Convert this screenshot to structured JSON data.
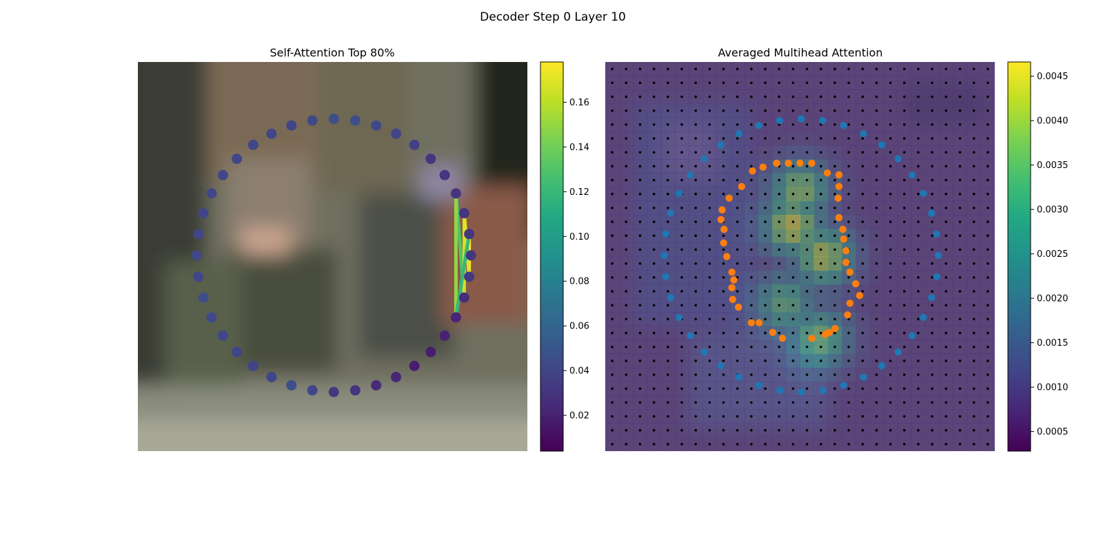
{
  "figure": {
    "suptitle": "Decoder Step 0 Layer 10"
  },
  "colors": {
    "viridis": [
      "#440154",
      "#482475",
      "#414487",
      "#355f8d",
      "#2a788e",
      "#21918c",
      "#22a884",
      "#44bf70",
      "#7ad151",
      "#bddf26",
      "#fde725"
    ],
    "blue_points": "#1f77b4",
    "orange_points": "#ff7f0e",
    "grid_dots": "#000000"
  },
  "chart_data": [
    {
      "type": "scatter",
      "title": "Self-Attention Top 80%",
      "background": "blurred street-scene photograph",
      "colorbar": {
        "range": [
          0.004,
          0.178
        ],
        "ticks": [
          0.02,
          0.04,
          0.06,
          0.08,
          0.1,
          0.12,
          0.14,
          0.16
        ],
        "tick_labels": [
          "0.02",
          "0.04",
          "0.06",
          "0.08",
          "0.10",
          "0.12",
          "0.14",
          "0.16"
        ]
      },
      "points": {
        "count": 40,
        "center": [
          0.503,
          0.497
        ],
        "radii": [
          0.352,
          0.351
        ],
        "start_angle_deg": -90,
        "values": [
          0.045,
          0.045,
          0.042,
          0.04,
          0.037,
          0.032,
          0.032,
          0.03,
          0.03,
          0.032,
          0.032,
          0.033,
          0.027,
          0.022,
          0.02,
          0.018,
          0.018,
          0.022,
          0.025,
          0.03,
          0.033,
          0.04,
          0.045,
          0.04,
          0.038,
          0.04,
          0.04,
          0.042,
          0.045,
          0.04,
          0.04,
          0.04,
          0.04,
          0.04,
          0.04,
          0.04,
          0.04,
          0.04,
          0.04,
          0.042
        ]
      },
      "attention_lines": [
        {
          "from": 12,
          "to": 7,
          "value": 0.13
        },
        {
          "from": 13,
          "to": 7,
          "value": 0.15
        },
        {
          "from": 12,
          "to": 8,
          "value": 0.165
        },
        {
          "from": 11,
          "to": 9,
          "value": 0.178
        },
        {
          "from": 11,
          "to": 8,
          "value": 0.17
        },
        {
          "from": 13,
          "to": 9,
          "value": 0.12
        }
      ]
    },
    {
      "type": "heatmap",
      "title": "Averaged Multihead Attention",
      "grid_size": 28,
      "colorbar": {
        "range": [
          0.00028,
          0.00466
        ],
        "ticks": [
          0.0005,
          0.001,
          0.0015,
          0.002,
          0.0025,
          0.003,
          0.0035,
          0.004,
          0.0045
        ],
        "tick_labels": [
          "0.0005",
          "0.0010",
          "0.0015",
          "0.0020",
          "0.0025",
          "0.0030",
          "0.0035",
          "0.0040",
          "0.0045"
        ]
      },
      "blue_series": {
        "count": 40,
        "center": [
          0.503,
          0.497
        ],
        "radii": [
          0.352,
          0.351
        ],
        "start_angle_deg": -90
      },
      "orange_series": {
        "points": [
          [
            0.5,
            0.26
          ],
          [
            0.53,
            0.26
          ],
          [
            0.57,
            0.285
          ],
          [
            0.6,
            0.29
          ],
          [
            0.6,
            0.32
          ],
          [
            0.598,
            0.35
          ],
          [
            0.6,
            0.4
          ],
          [
            0.61,
            0.43
          ],
          [
            0.612,
            0.455
          ],
          [
            0.618,
            0.485
          ],
          [
            0.618,
            0.515
          ],
          [
            0.628,
            0.54
          ],
          [
            0.643,
            0.57
          ],
          [
            0.653,
            0.6
          ],
          [
            0.628,
            0.62
          ],
          [
            0.622,
            0.65
          ],
          [
            0.59,
            0.685
          ],
          [
            0.575,
            0.695
          ],
          [
            0.565,
            0.7
          ],
          [
            0.53,
            0.71
          ],
          [
            0.455,
            0.71
          ],
          [
            0.43,
            0.695
          ],
          [
            0.395,
            0.67
          ],
          [
            0.375,
            0.67
          ],
          [
            0.342,
            0.63
          ],
          [
            0.327,
            0.61
          ],
          [
            0.325,
            0.58
          ],
          [
            0.33,
            0.56
          ],
          [
            0.325,
            0.54
          ],
          [
            0.312,
            0.5
          ],
          [
            0.304,
            0.465
          ],
          [
            0.305,
            0.43
          ],
          [
            0.297,
            0.405
          ],
          [
            0.3,
            0.38
          ],
          [
            0.318,
            0.35
          ],
          [
            0.35,
            0.32
          ],
          [
            0.378,
            0.28
          ],
          [
            0.405,
            0.27
          ],
          [
            0.44,
            0.26
          ],
          [
            0.47,
            0.26
          ]
        ]
      },
      "value_peaks": [
        {
          "x": 0.48,
          "y": 0.42,
          "v": 0.0045
        },
        {
          "x": 0.56,
          "y": 0.5,
          "v": 0.0043
        },
        {
          "x": 0.5,
          "y": 0.33,
          "v": 0.004
        },
        {
          "x": 0.55,
          "y": 0.71,
          "v": 0.0038
        },
        {
          "x": 0.46,
          "y": 0.62,
          "v": 0.0035
        }
      ]
    }
  ]
}
